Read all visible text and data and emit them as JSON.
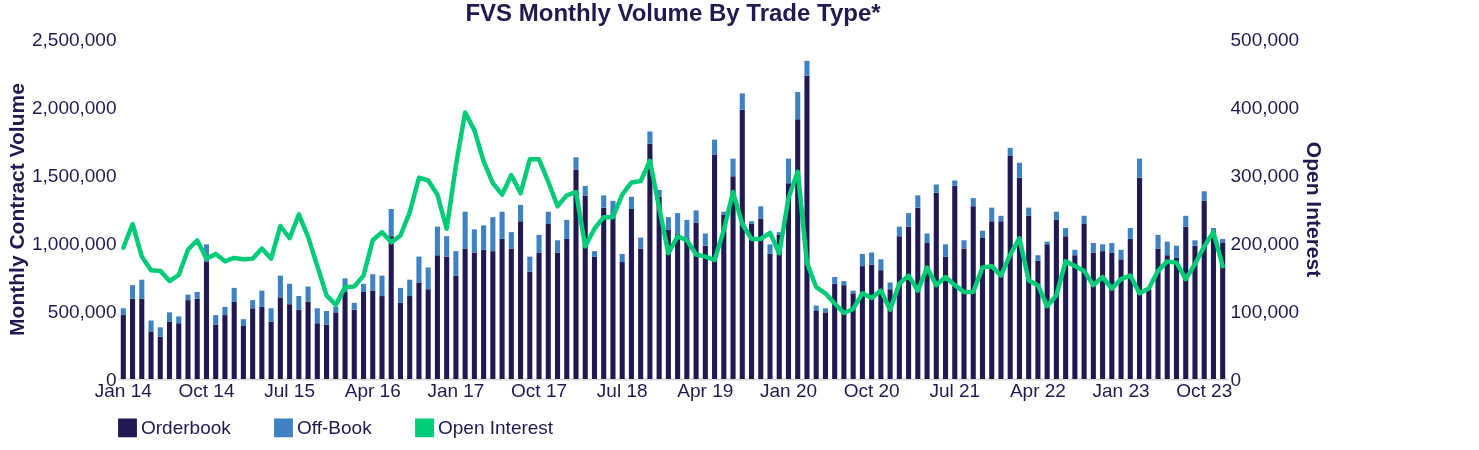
{
  "chart_data": {
    "type": "bar",
    "title": "FVS Monthly Volume By Trade Type*",
    "ylabel": "Monthly Contract Volume",
    "y2label": "Open Interest",
    "stacked": true,
    "legend": "bottom",
    "categories": [
      "Jan 14",
      null,
      null,
      null,
      null,
      null,
      null,
      null,
      null,
      "Oct 14",
      null,
      null,
      null,
      null,
      null,
      null,
      null,
      null,
      "Jul 15",
      null,
      null,
      null,
      null,
      null,
      null,
      null,
      null,
      "Apr 16",
      null,
      null,
      null,
      null,
      null,
      null,
      null,
      null,
      "Jan 17",
      null,
      null,
      null,
      null,
      null,
      null,
      null,
      null,
      "Oct 17",
      null,
      null,
      null,
      null,
      null,
      null,
      null,
      null,
      "Jul 18",
      null,
      null,
      null,
      null,
      null,
      null,
      null,
      null,
      "Apr 19",
      null,
      null,
      null,
      null,
      null,
      null,
      null,
      null,
      "Jan 20",
      null,
      null,
      null,
      null,
      null,
      null,
      null,
      null,
      "Oct 20",
      null,
      null,
      null,
      null,
      null,
      null,
      null,
      null,
      "Jul 21",
      null,
      null,
      null,
      null,
      null,
      null,
      null,
      null,
      "Apr 22",
      null,
      null,
      null,
      null,
      null,
      null,
      null,
      null,
      "Jan 23",
      null,
      null,
      null,
      null,
      null,
      null,
      null,
      null,
      "Oct 23",
      null,
      null
    ],
    "ylim": [
      0,
      2500000
    ],
    "yticks": [
      {
        "value": 0,
        "label": "0"
      },
      {
        "value": 500000,
        "label": "500,000"
      },
      {
        "value": 1000000,
        "label": "1,000,000"
      },
      {
        "value": 1500000,
        "label": "1,500,000"
      },
      {
        "value": 2000000,
        "label": "2,000,000"
      },
      {
        "value": 2500000,
        "label": "2,500,000"
      }
    ],
    "y2lim": [
      0,
      500000
    ],
    "y2ticks": [
      {
        "value": 0,
        "label": "0"
      },
      {
        "value": 100000,
        "label": "100,000"
      },
      {
        "value": 200000,
        "label": "200,000"
      },
      {
        "value": 300000,
        "label": "300,000"
      },
      {
        "value": 400000,
        "label": "400,000"
      },
      {
        "value": 500000,
        "label": "500,000"
      }
    ],
    "series": [
      {
        "name": "Orderbook",
        "color": "#211a52",
        "values": [
          470000,
          590000,
          590000,
          350000,
          310000,
          420000,
          410000,
          580000,
          590000,
          860000,
          400000,
          470000,
          570000,
          390000,
          520000,
          530000,
          420000,
          600000,
          550000,
          510000,
          570000,
          410000,
          400000,
          490000,
          640000,
          510000,
          640000,
          650000,
          610000,
          1050000,
          560000,
          610000,
          710000,
          660000,
          910000,
          900000,
          760000,
          960000,
          930000,
          950000,
          940000,
          1030000,
          960000,
          1160000,
          790000,
          930000,
          1140000,
          930000,
          1030000,
          1540000,
          1350000,
          900000,
          1260000,
          1200000,
          860000,
          1250000,
          960000,
          1730000,
          1340000,
          1100000,
          1070000,
          1040000,
          1150000,
          980000,
          1650000,
          1210000,
          1490000,
          1980000,
          1140000,
          1180000,
          920000,
          1060000,
          1440000,
          1910000,
          2230000,
          500000,
          490000,
          700000,
          690000,
          630000,
          830000,
          840000,
          800000,
          660000,
          1050000,
          1120000,
          1260000,
          1000000,
          1370000,
          900000,
          1420000,
          960000,
          1270000,
          1040000,
          1160000,
          1160000,
          1640000,
          1480000,
          1200000,
          870000,
          990000,
          1170000,
          1050000,
          910000,
          1140000,
          930000,
          940000,
          930000,
          880000,
          1030000,
          1480000,
          660000,
          960000,
          910000,
          890000,
          1120000,
          980000,
          1310000,
          1090000,
          1000000
        ]
      },
      {
        "name": "Off-Book",
        "color": "#3e82c4",
        "values": [
          50000,
          100000,
          140000,
          80000,
          70000,
          70000,
          50000,
          40000,
          50000,
          130000,
          70000,
          60000,
          100000,
          50000,
          60000,
          120000,
          100000,
          160000,
          150000,
          100000,
          110000,
          110000,
          100000,
          40000,
          100000,
          50000,
          60000,
          120000,
          150000,
          200000,
          110000,
          120000,
          190000,
          160000,
          210000,
          150000,
          180000,
          270000,
          170000,
          180000,
          250000,
          200000,
          120000,
          120000,
          110000,
          130000,
          90000,
          90000,
          140000,
          90000,
          70000,
          40000,
          90000,
          110000,
          60000,
          90000,
          80000,
          90000,
          50000,
          90000,
          150000,
          130000,
          90000,
          90000,
          110000,
          20000,
          130000,
          120000,
          20000,
          90000,
          70000,
          20000,
          180000,
          200000,
          110000,
          40000,
          30000,
          50000,
          30000,
          20000,
          90000,
          90000,
          80000,
          50000,
          70000,
          100000,
          90000,
          70000,
          60000,
          90000,
          40000,
          60000,
          60000,
          50000,
          100000,
          40000,
          60000,
          110000,
          60000,
          40000,
          20000,
          60000,
          60000,
          40000,
          60000,
          70000,
          50000,
          70000,
          70000,
          80000,
          140000,
          null,
          100000,
          100000,
          90000,
          80000,
          40000,
          70000,
          20000,
          30000
        ]
      },
      {
        "name": "Open Interest",
        "type": "line",
        "axis": "y2",
        "color": "#00cc78",
        "values": [
          193000,
          228000,
          180000,
          160000,
          159000,
          144000,
          153000,
          190000,
          204000,
          177000,
          184000,
          173000,
          178000,
          176000,
          177000,
          192000,
          177000,
          225000,
          207000,
          242000,
          209000,
          166000,
          123000,
          109000,
          135000,
          136000,
          152000,
          204000,
          216000,
          201000,
          211000,
          245000,
          296000,
          292000,
          271000,
          221000,
          314000,
          392000,
          366000,
          320000,
          288000,
          271000,
          300000,
          273000,
          323000,
          323000,
          290000,
          254000,
          270000,
          275000,
          195000,
          221000,
          238000,
          238000,
          271000,
          289000,
          291000,
          321000,
          252000,
          185000,
          210000,
          204000,
          183000,
          180000,
          175000,
          219000,
          275000,
          228000,
          206000,
          206000,
          215000,
          185000,
          266000,
          305000,
          171000,
          135000,
          126000,
          111000,
          97000,
          103000,
          126000,
          119000,
          130000,
          102000,
          140000,
          152000,
          130000,
          164000,
          138000,
          150000,
          138000,
          128000,
          128000,
          164000,
          166000,
          152000,
          183000,
          207000,
          145000,
          138000,
          107000,
          123000,
          173000,
          166000,
          159000,
          138000,
          150000,
          133000,
          147000,
          152000,
          126000,
          133000,
          159000,
          173000,
          171000,
          147000,
          169000,
          195000,
          216000,
          166000
        ]
      }
    ]
  }
}
